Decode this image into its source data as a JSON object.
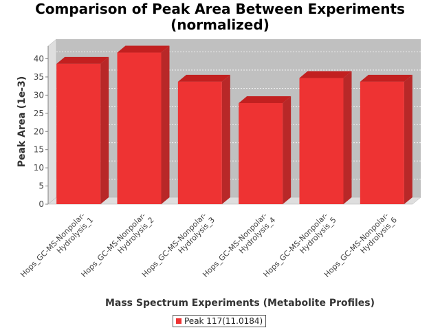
{
  "chart_data": {
    "type": "bar",
    "title_lines": [
      "Comparison of Peak Area Between Experiments",
      "(normalized)"
    ],
    "xlabel": "Mass Spectrum Experiments (Metabolite Profiles)",
    "ylabel": "Peak Area (1e-3)",
    "ylim": [
      0,
      43.5
    ],
    "yticks": [
      0,
      5,
      10,
      15,
      20,
      25,
      30,
      35,
      40
    ],
    "categories": [
      "Hops_GC-MS-Nonpolar-Hydrolysis_1",
      "Hops_GC-MS-Nonpolar-Hydrolysis_2",
      "Hops_GC-MS-Nonpolar-Hydrolysis_3",
      "Hops_GC-MS-Nonpolar-Hydrolysis_4",
      "Hops_GC-MS-Nonpolar-Hydrolysis_5",
      "Hops_GC-MS-Nonpolar-Hydrolysis_6"
    ],
    "category_label_lines": [
      [
        "Hops_GC-MS-Nonpolar-",
        "Hydrolysis_1"
      ],
      [
        "Hops_GC-MS-Nonpolar-",
        "Hydrolysis_2"
      ],
      [
        "Hops_GC-MS-Nonpolar-",
        "Hydrolysis_3"
      ],
      [
        "Hops_GC-MS-Nonpolar-",
        "Hydrolysis_4"
      ],
      [
        "Hops_GC-MS-Nonpolar-",
        "Hydrolysis_5"
      ],
      [
        "Hops_GC-MS-Nonpolar-",
        "Hydrolysis_6"
      ]
    ],
    "series": [
      {
        "name": "Peak 117(11.0184)",
        "values": [
          38.6,
          41.7,
          33.7,
          27.8,
          34.7,
          33.7
        ]
      }
    ],
    "grid": true,
    "legend_position": "bottom-center",
    "colors": {
      "bar_front": "#ee3333",
      "bar_top": "#c22020",
      "bar_side": "#b82828",
      "plot_background": "#c0c0c0",
      "plot_side_wall": "#dedede",
      "gridline": "#ffffff"
    }
  }
}
